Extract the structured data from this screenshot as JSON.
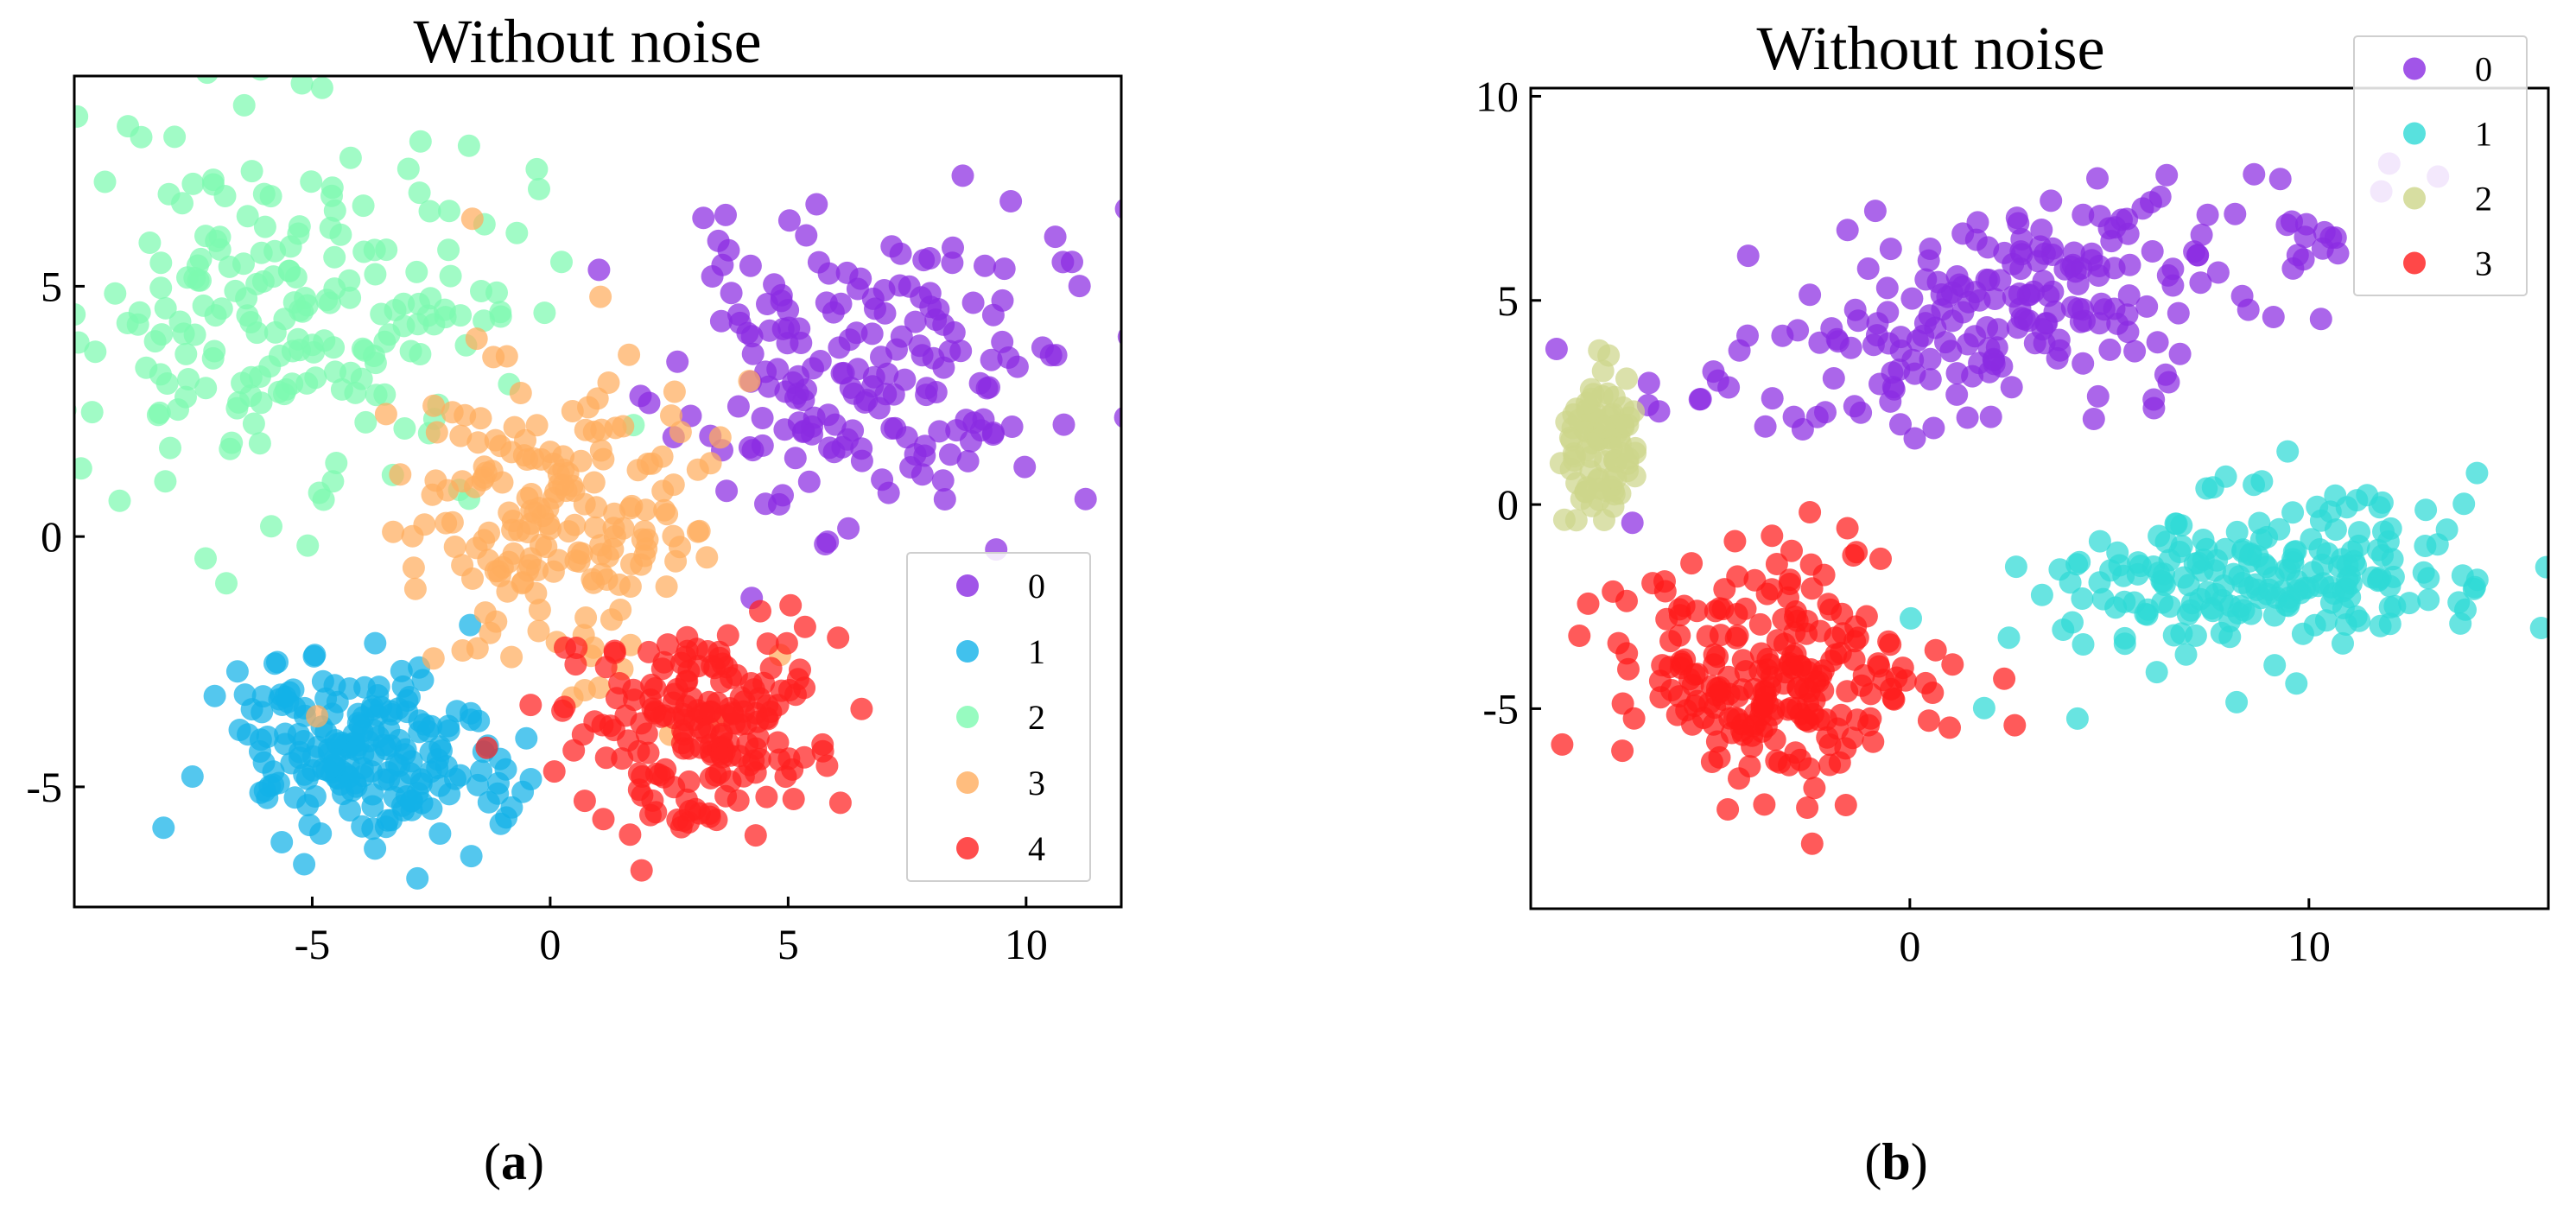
{
  "chart_data": [
    {
      "type": "scatter",
      "title": "Without noise",
      "caption_open": "(",
      "caption_letter": "a",
      "caption_close": ")",
      "xlabel": "",
      "ylabel": "",
      "xlim": [
        -10,
        12
      ],
      "ylim": [
        -7.4,
        9.2
      ],
      "xticks": [
        -5,
        0,
        5,
        10
      ],
      "yticks": [
        -5,
        0,
        5
      ],
      "xtick_labels": [
        "-5",
        "0",
        "5",
        "10"
      ],
      "ytick_labels": [
        "-5",
        "0",
        "5"
      ],
      "legend_position": "bottom-right",
      "series": [
        {
          "name": "0",
          "color": "#8a2be2",
          "n": 190,
          "cx": 6.6,
          "cy": 3.3,
          "sx": 2.0,
          "sy": 1.5,
          "rot": 0.1,
          "seed": 11
        },
        {
          "name": "1",
          "color": "#12b2e8",
          "n": 200,
          "cx": -4.0,
          "cy": -4.4,
          "sx": 1.5,
          "sy": 0.9,
          "rot": -0.15,
          "seed": 23
        },
        {
          "name": "2",
          "color": "#7dfab0",
          "n": 210,
          "cx": -5.2,
          "cy": 4.6,
          "sx": 2.4,
          "sy": 2.0,
          "rot": 0.0,
          "seed": 37
        },
        {
          "name": "3",
          "color": "#ffad5e",
          "n": 190,
          "cx": 0.3,
          "cy": 0.4,
          "sx": 1.6,
          "sy": 1.7,
          "rot": -0.4,
          "seed": 41
        },
        {
          "name": "4",
          "color": "#ff2020",
          "n": 190,
          "cx": 3.1,
          "cy": -3.8,
          "sx": 1.3,
          "sy": 1.0,
          "rot": 0.0,
          "seed": 53
        }
      ]
    },
    {
      "type": "scatter",
      "title": "Without noise",
      "caption_open": "(",
      "caption_letter": "b",
      "caption_close": ")",
      "xlabel": "",
      "ylabel": "",
      "xlim": [
        -9.5,
        16
      ],
      "ylim": [
        -9.9,
        10.2
      ],
      "xticks": [
        0,
        10
      ],
      "yticks": [
        -5,
        0,
        5,
        10
      ],
      "xtick_labels": [
        "0",
        "10"
      ],
      "ytick_labels": [
        "-5",
        "0",
        "5",
        "10"
      ],
      "legend_position": "top-right",
      "series": [
        {
          "name": "0",
          "color": "#8a2be2",
          "n": 230,
          "cx": 2.5,
          "cy": 4.9,
          "sx": 4.2,
          "sy": 1.2,
          "rot": 0.25,
          "seed": 67
        },
        {
          "name": "1",
          "color": "#2ed9d6",
          "n": 210,
          "cx": 9.0,
          "cy": -1.7,
          "sx": 3.0,
          "sy": 1.0,
          "rot": 0.12,
          "seed": 71
        },
        {
          "name": "2",
          "color": "#cdd68a",
          "n": 90,
          "cx": -7.8,
          "cy": 1.5,
          "sx": 0.45,
          "sy": 1.0,
          "rot": 0.0,
          "seed": 83
        },
        {
          "name": "3",
          "color": "#ff1a1a",
          "n": 230,
          "cx": -3.5,
          "cy": -4.2,
          "sx": 1.9,
          "sy": 1.5,
          "rot": -0.35,
          "seed": 97
        }
      ]
    }
  ]
}
